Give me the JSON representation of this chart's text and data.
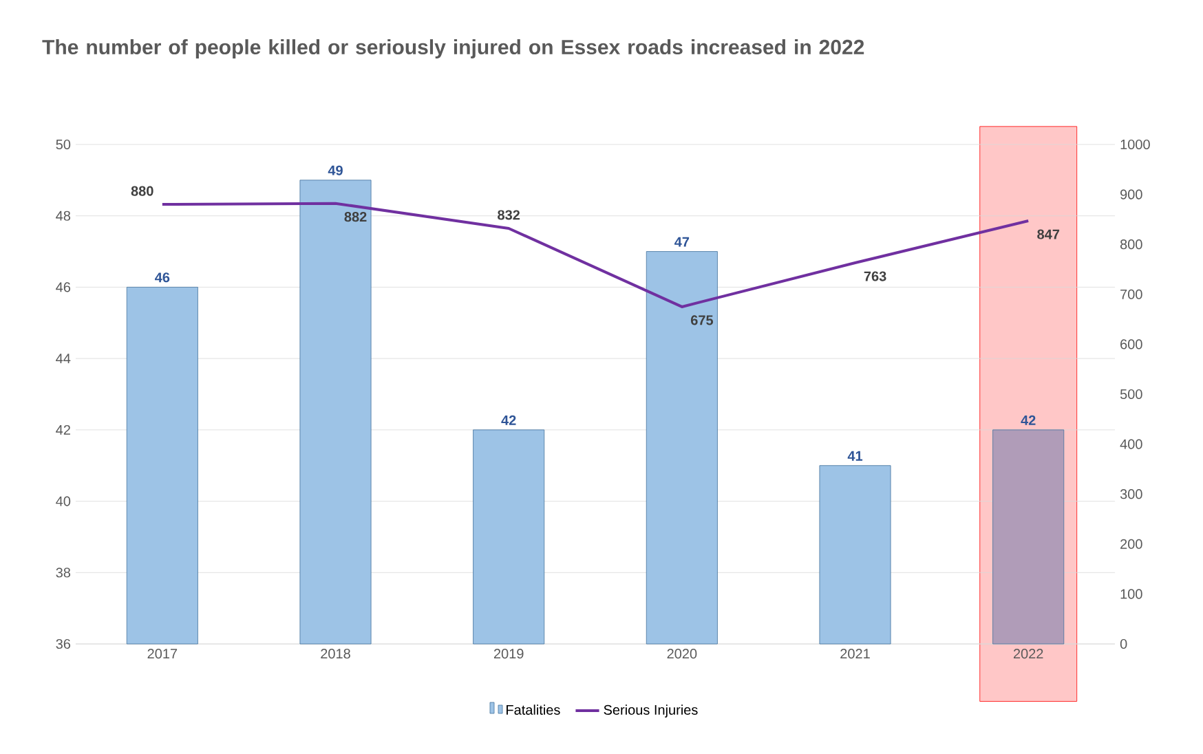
{
  "chart_data": {
    "type": "bar",
    "title": "The number of people killed or seriously injured on Essex roads increased in 2022",
    "categories": [
      "2017",
      "2018",
      "2019",
      "2020",
      "2021",
      "2022"
    ],
    "series": [
      {
        "name": "Fatalities",
        "colors": [
          "#9dc3e6",
          "#9dc3e6",
          "#9dc3e6",
          "#9dc3e6",
          "#9dc3e6",
          "#b09cb8"
        ],
        "values": [
          46,
          49,
          42,
          47,
          41,
          42
        ]
      },
      {
        "name": "Serious Injuries",
        "type": "line",
        "axis": "y2",
        "color": "#7030a0",
        "values": [
          880,
          882,
          832,
          675,
          763,
          847
        ]
      }
    ],
    "ylim": [
      36,
      50
    ],
    "yticks": [
      36,
      38,
      40,
      42,
      44,
      46,
      48,
      50
    ],
    "y2lim": [
      0,
      1000
    ],
    "y2ticks": [
      0,
      100,
      200,
      300,
      400,
      500,
      600,
      700,
      800,
      900,
      1000
    ],
    "bands": [
      {
        "axis": "x",
        "from": "2022",
        "to": "2022",
        "color": "#ffc7c7"
      }
    ],
    "grid": "y",
    "legend": "bottom",
    "data_labels": true,
    "marker": "none",
    "line_style": "solid"
  }
}
